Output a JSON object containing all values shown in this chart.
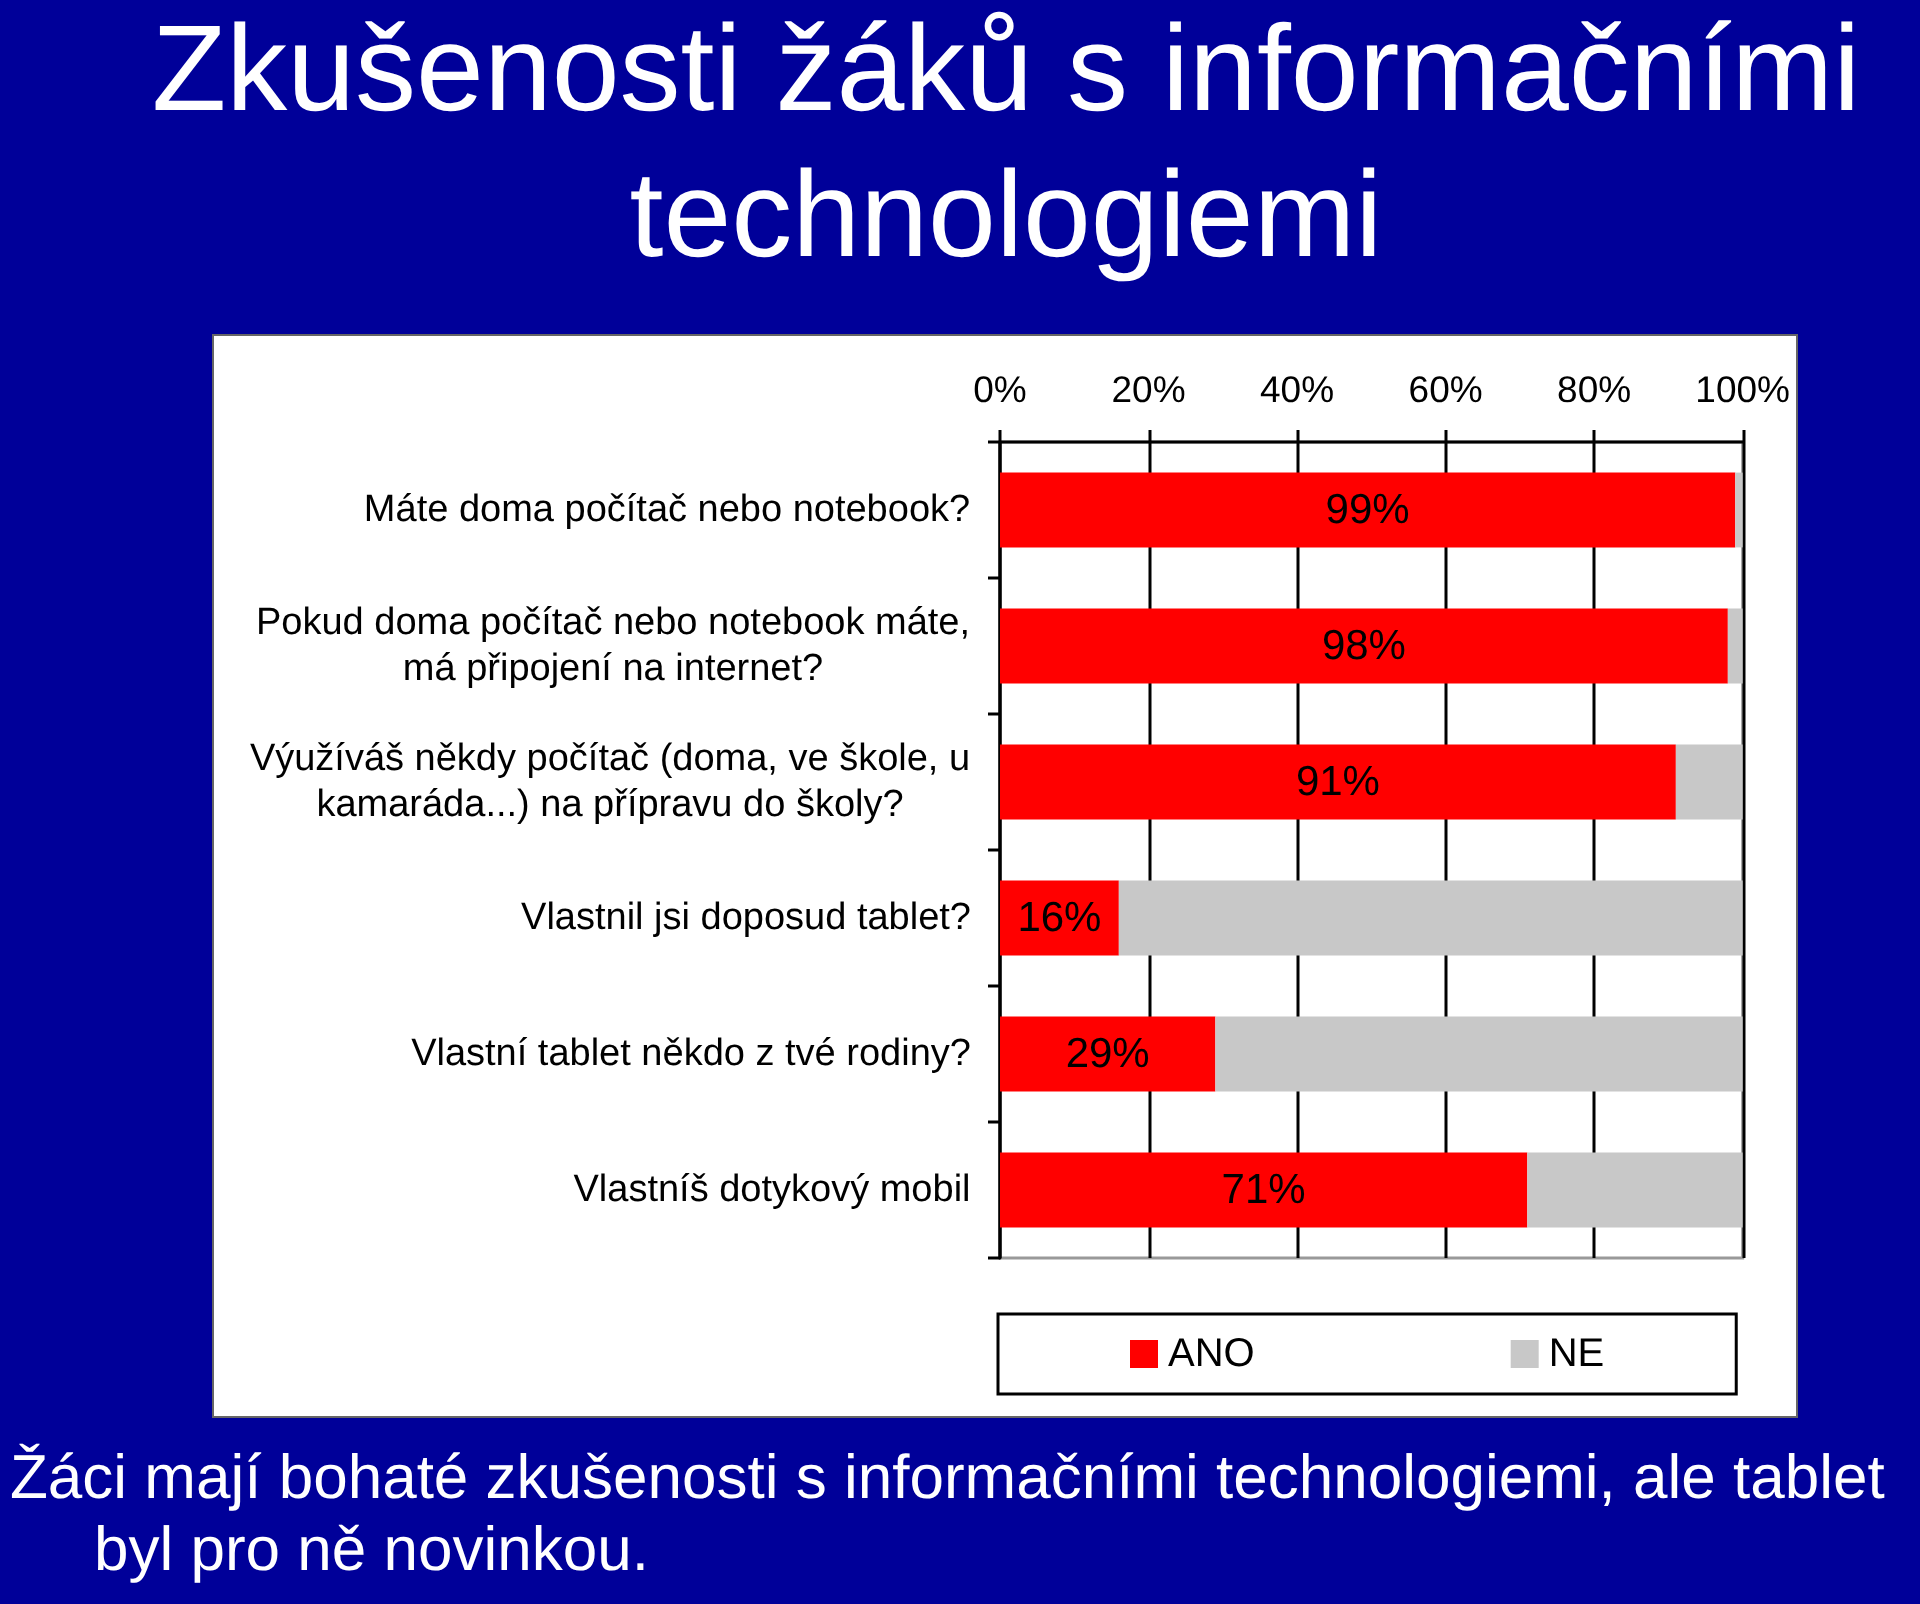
{
  "chart_data": {
    "type": "bar",
    "orientation": "horizontal",
    "stacked": true,
    "title": "Zkušenosti žáků s informačními technologiemi",
    "annotations": [
      "Žáci mají bohaté zkušenosti s informačními technologiemi, ale tablet byl pro ně novinkou."
    ],
    "categories": [
      "Máte doma počítač nebo notebook?",
      "Pokud doma počítač nebo notebook máte, má připojení na internet?",
      "Výužíváš někdy počítač (doma, ve škole, u kamaráda...) na přípravu do školy?",
      "Vlastnil jsi doposud tablet?",
      "Vlastní tablet někdo z tvé rodiny?",
      "Vlastníš dotykový mobil"
    ],
    "series": [
      {
        "name": "ANO",
        "color": "#ff0000",
        "values": [
          99,
          98,
          91,
          16,
          29,
          71
        ],
        "value_labels": [
          "99%",
          "98%",
          "91%",
          "16%",
          "29%",
          "71%"
        ]
      },
      {
        "name": "NE",
        "color": "#c8c8c8",
        "values": [
          1,
          2,
          9,
          84,
          71,
          29
        ]
      }
    ],
    "xlim": [
      0,
      100
    ],
    "xticks": [
      {
        "value": 0,
        "label": "0%"
      },
      {
        "value": 20,
        "label": "20%"
      },
      {
        "value": 40,
        "label": "40%"
      },
      {
        "value": 60,
        "label": "60%"
      },
      {
        "value": 80,
        "label": "80%"
      },
      {
        "value": 100,
        "label": "100%"
      }
    ],
    "grid": "x",
    "legend": "bottom"
  }
}
